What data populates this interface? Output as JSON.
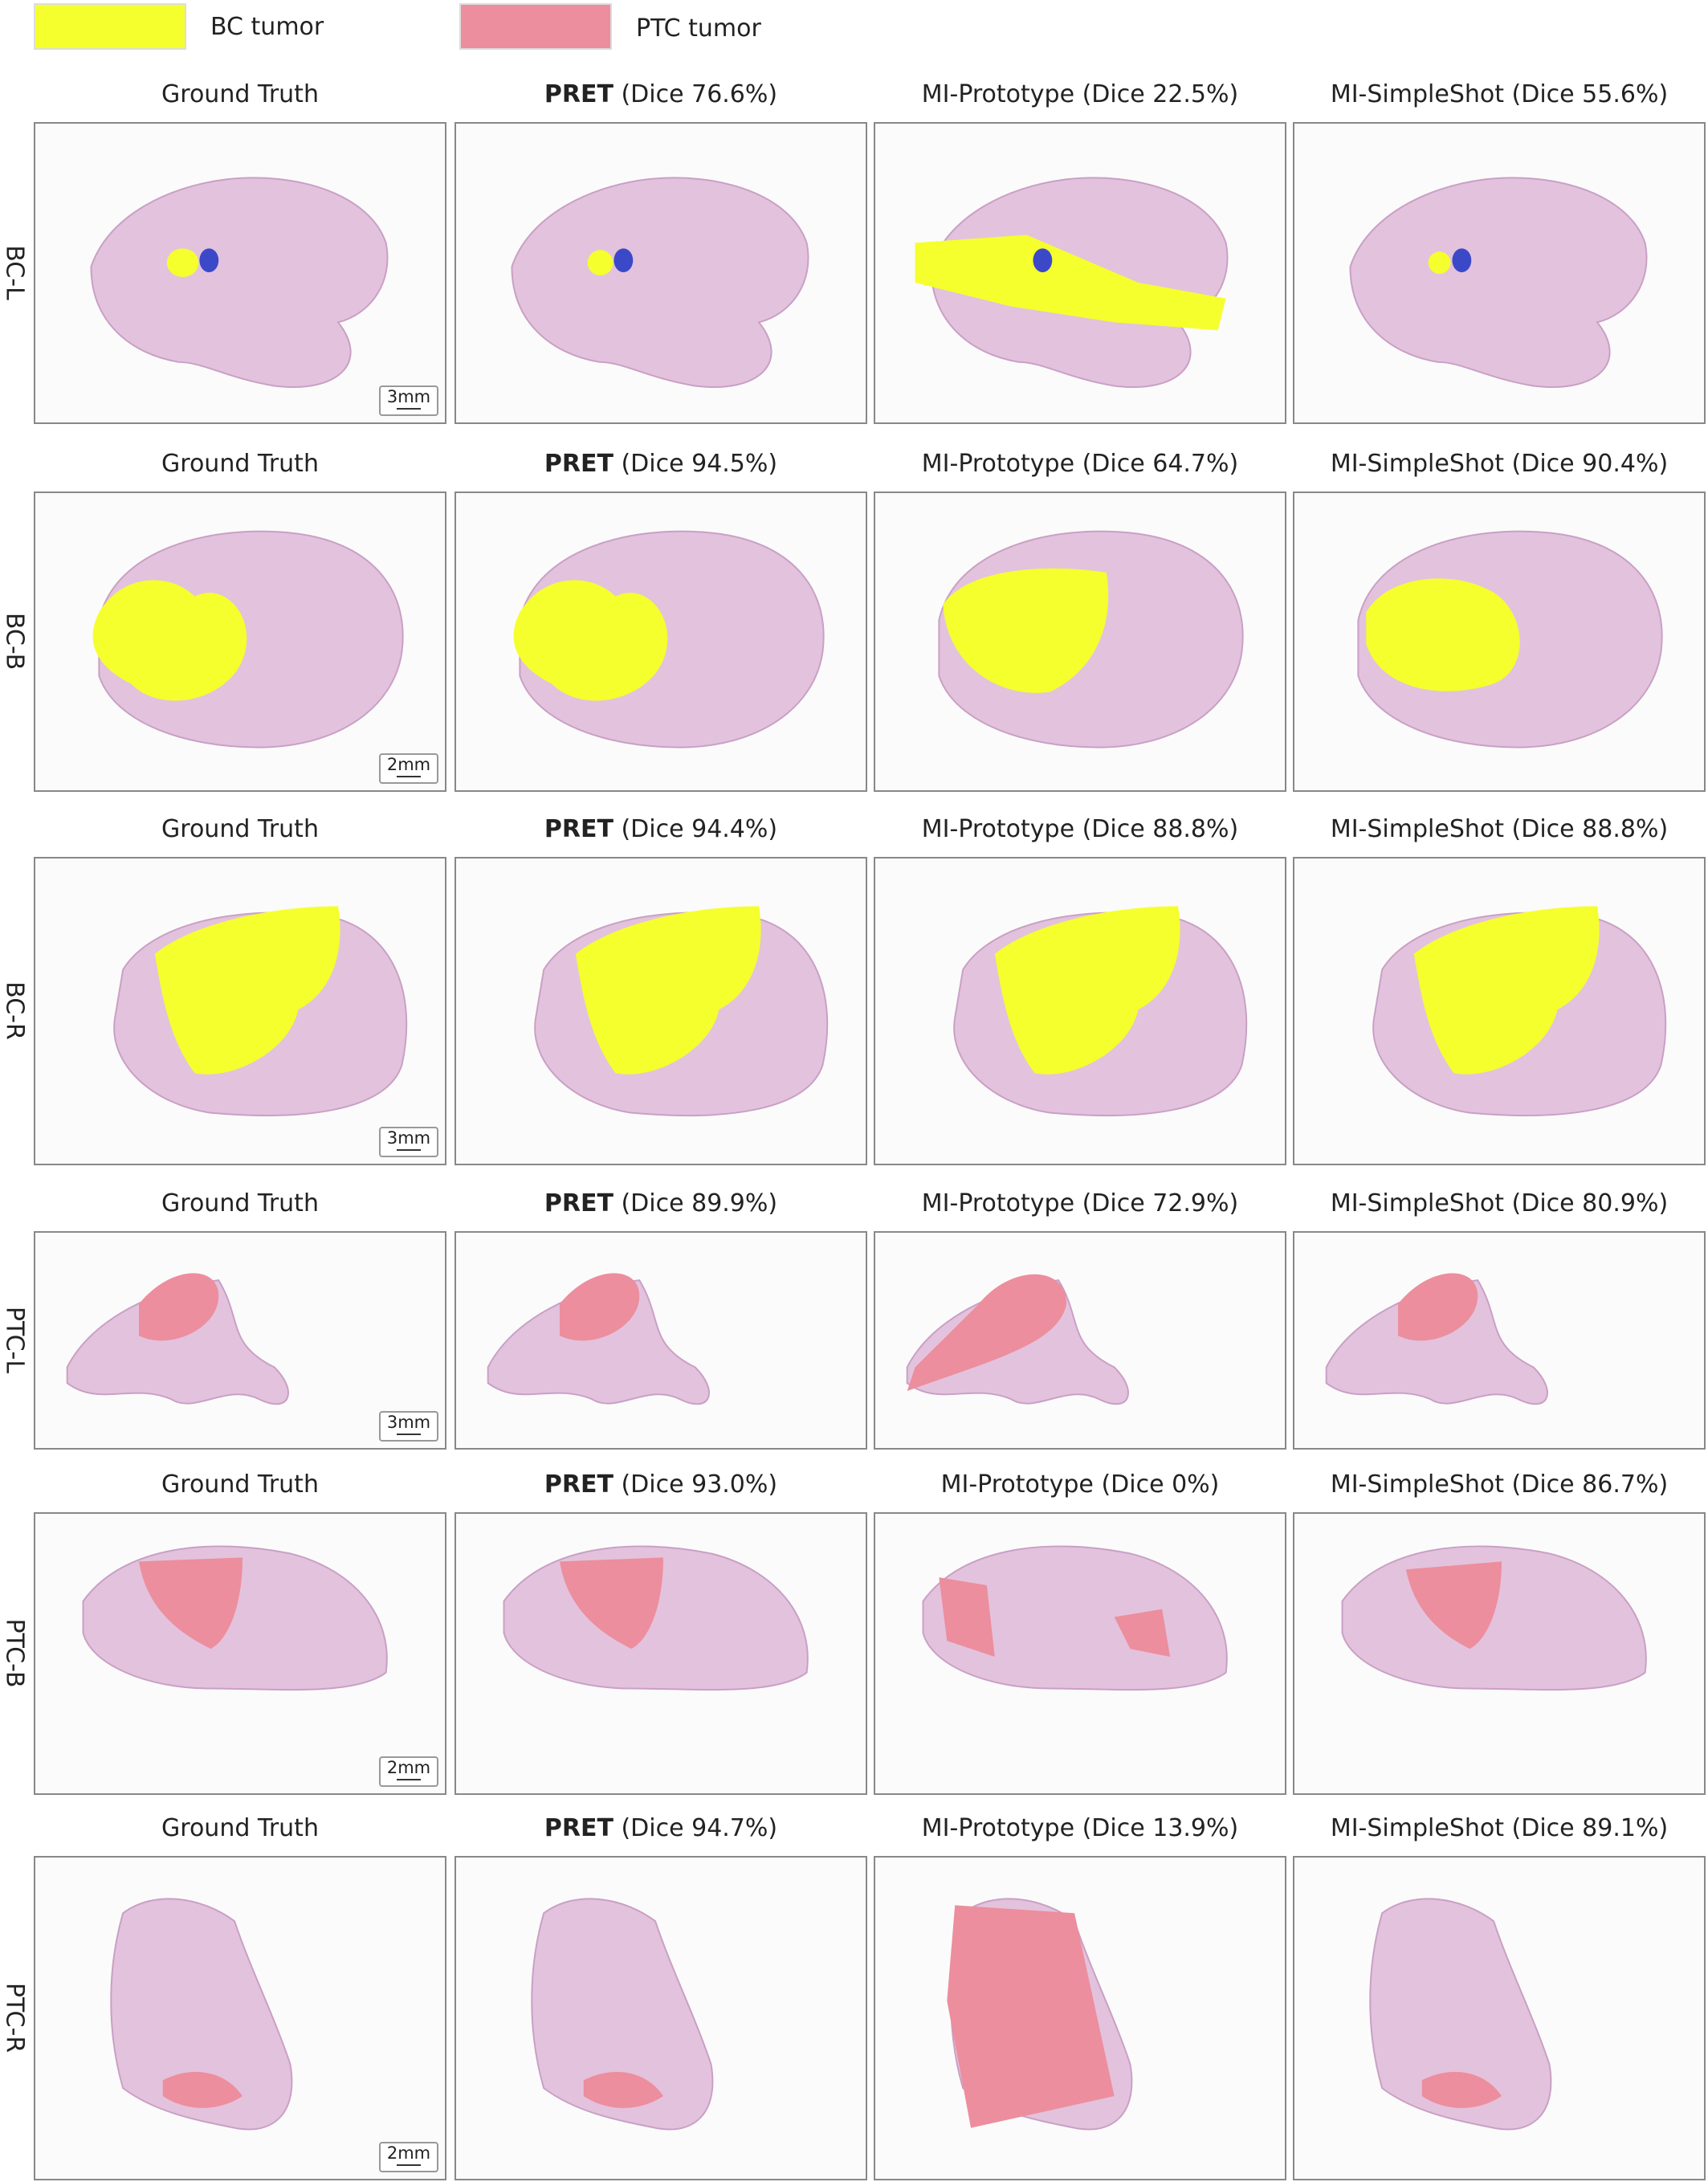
{
  "legend": [
    {
      "label": "BC tumor",
      "color": "#f5ff2e"
    },
    {
      "label": "PTC tumor",
      "color": "#ec8e9d"
    }
  ],
  "colors": {
    "bc_tumor": "#f5ff2e",
    "ptc_tumor": "#ec8e9d",
    "benign_marker": "#3b49c9",
    "tissue": "#e3c2dd"
  },
  "rows": [
    {
      "label": "BC-L",
      "scale": "3mm",
      "tumor": "bc",
      "captions": [
        {
          "method": "Ground Truth",
          "dice": ""
        },
        {
          "method": "PRET",
          "dice": "(Dice 76.6%)"
        },
        {
          "method": "MI-Prototype",
          "dice": "(Dice 22.5%)"
        },
        {
          "method": "MI-SimpleShot",
          "dice": "(Dice 55.6%)"
        }
      ]
    },
    {
      "label": "BC-B",
      "scale": "2mm",
      "tumor": "bc",
      "captions": [
        {
          "method": "Ground Truth",
          "dice": ""
        },
        {
          "method": "PRET",
          "dice": "(Dice 94.5%)"
        },
        {
          "method": "MI-Prototype",
          "dice": "(Dice 64.7%)"
        },
        {
          "method": "MI-SimpleShot",
          "dice": "(Dice 90.4%)"
        }
      ]
    },
    {
      "label": "BC-R",
      "scale": "3mm",
      "tumor": "bc",
      "captions": [
        {
          "method": "Ground Truth",
          "dice": ""
        },
        {
          "method": "PRET",
          "dice": "(Dice 94.4%)"
        },
        {
          "method": "MI-Prototype",
          "dice": "(Dice 88.8%)"
        },
        {
          "method": "MI-SimpleShot",
          "dice": "(Dice 88.8%)"
        }
      ]
    },
    {
      "label": "PTC-L",
      "scale": "3mm",
      "tumor": "ptc",
      "captions": [
        {
          "method": "Ground Truth",
          "dice": ""
        },
        {
          "method": "PRET",
          "dice": "(Dice 89.9%)"
        },
        {
          "method": "MI-Prototype",
          "dice": "(Dice 72.9%)"
        },
        {
          "method": "MI-SimpleShot",
          "dice": "(Dice 80.9%)"
        }
      ]
    },
    {
      "label": "PTC-B",
      "scale": "2mm",
      "tumor": "ptc",
      "captions": [
        {
          "method": "Ground Truth",
          "dice": ""
        },
        {
          "method": "PRET",
          "dice": "(Dice 93.0%)"
        },
        {
          "method": "MI-Prototype",
          "dice": "(Dice 0%)"
        },
        {
          "method": "MI-SimpleShot",
          "dice": "(Dice 86.7%)"
        }
      ]
    },
    {
      "label": "PTC-R",
      "scale": "2mm",
      "tumor": "ptc",
      "captions": [
        {
          "method": "Ground Truth",
          "dice": ""
        },
        {
          "method": "PRET",
          "dice": "(Dice 94.7%)"
        },
        {
          "method": "MI-Prototype",
          "dice": "(Dice 13.9%)"
        },
        {
          "method": "MI-SimpleShot",
          "dice": "(Dice 89.1%)"
        }
      ]
    }
  ]
}
